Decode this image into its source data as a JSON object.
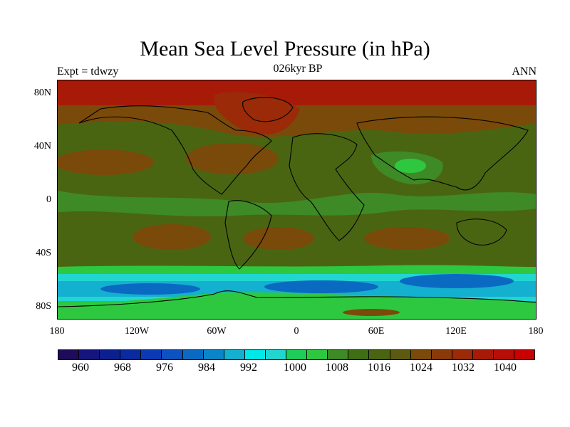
{
  "header": {
    "title": "Mean Sea Level Pressure (in hPa)",
    "experiment": "Expt = tdwzy",
    "subtitle": "026kyr BP",
    "season": "ANN"
  },
  "axes": {
    "lat_labels": [
      "80N",
      "40N",
      "0",
      "40S",
      "80S"
    ],
    "lon_labels": [
      "180",
      "120W",
      "60W",
      "0",
      "60E",
      "120E",
      "180"
    ]
  },
  "colorbar": {
    "colors": [
      "#1e0b5a",
      "#14167d",
      "#0b1f8e",
      "#0a2aa0",
      "#0b3ab4",
      "#0c52c0",
      "#0a6ac2",
      "#0a86c8",
      "#14b0cf",
      "#00e8e8",
      "#22d6d0",
      "#1ecc5a",
      "#2ec840",
      "#3e8a26",
      "#3f6e14",
      "#4a6512",
      "#5b5a10",
      "#7a4a0a",
      "#8a3a0a",
      "#9a2a08",
      "#a81a08",
      "#b80e08",
      "#c80202"
    ],
    "labels": [
      "960",
      "968",
      "976",
      "984",
      "992",
      "1000",
      "1008",
      "1016",
      "1024",
      "1032",
      "1040"
    ]
  },
  "legend_colors": {
    "high": "#a81a08",
    "mid_high": "#7a4a0a",
    "normal": "#4a6512",
    "low": "#3e8a26",
    "lower": "#22d6d0",
    "lowest": "#0a6ac2"
  }
}
